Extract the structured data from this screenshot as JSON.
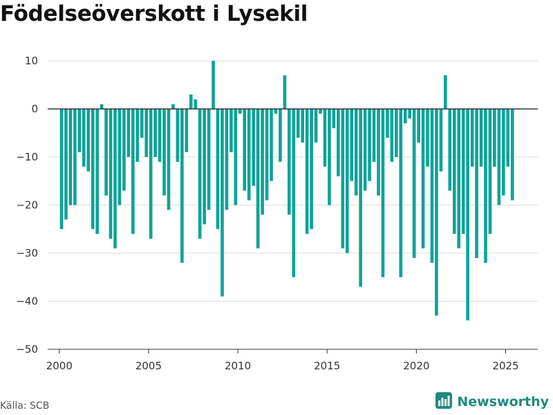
{
  "title": "Födelseöverskott i Lysekil",
  "source": "Källa: SCB",
  "brand": {
    "name": "Newsworthy",
    "icon": "bar-chart-logo-icon"
  },
  "colors": {
    "bar": "#0fa398",
    "zero_line": "#333333",
    "grid": "#dddddd",
    "brand": "#1e8a7e"
  },
  "chart_data": {
    "type": "bar",
    "title": "Födelseöverskott i Lysekil",
    "xlabel": "",
    "ylabel": "",
    "ylim": [
      -50,
      10
    ],
    "xlim": [
      1999.35,
      2026.8
    ],
    "yticks": [
      10,
      0,
      -10,
      -20,
      -30,
      -40,
      -50
    ],
    "ytick_labels": [
      "10",
      "0",
      "−10",
      "−20",
      "−30",
      "−40",
      "−50"
    ],
    "xticks": [
      2000,
      2005,
      2010,
      2015,
      2020,
      2025
    ],
    "xtick_labels": [
      "2000",
      "2005",
      "2010",
      "2015",
      "2020",
      "2025"
    ],
    "grid": true,
    "series": [
      {
        "frequency": "quarterly",
        "start": "2000 Q1",
        "values": [
          -25,
          -23,
          -20,
          -20,
          -9,
          -12,
          -13,
          -25,
          -26,
          1,
          -18,
          -27,
          -29,
          -20,
          -17,
          -10,
          -26,
          -11,
          -6,
          -10,
          -27,
          -10,
          -11,
          -18,
          -21,
          1,
          -11,
          -32,
          -9,
          3,
          2,
          -27,
          -24,
          -21,
          10,
          -25,
          -39,
          -21,
          -9,
          -20,
          -1,
          -17,
          -19,
          -16,
          -29,
          -22,
          -19,
          -15,
          -1,
          -11,
          7,
          -22,
          -35,
          -6,
          -7,
          -26,
          -25,
          -7,
          -1,
          -12,
          -20,
          -4,
          -14,
          -29,
          -30,
          -15,
          -18,
          -37,
          -17,
          -15,
          -11,
          -18,
          -35,
          -6,
          -11,
          -10,
          -35,
          -3,
          -2,
          -31,
          -7,
          -29,
          -12,
          -32,
          -43,
          -13,
          7,
          -17,
          -26,
          -29,
          -26,
          -44,
          -12,
          -31,
          -12,
          -32,
          -26,
          -12,
          -20,
          -18,
          -12,
          -19
        ]
      }
    ]
  }
}
